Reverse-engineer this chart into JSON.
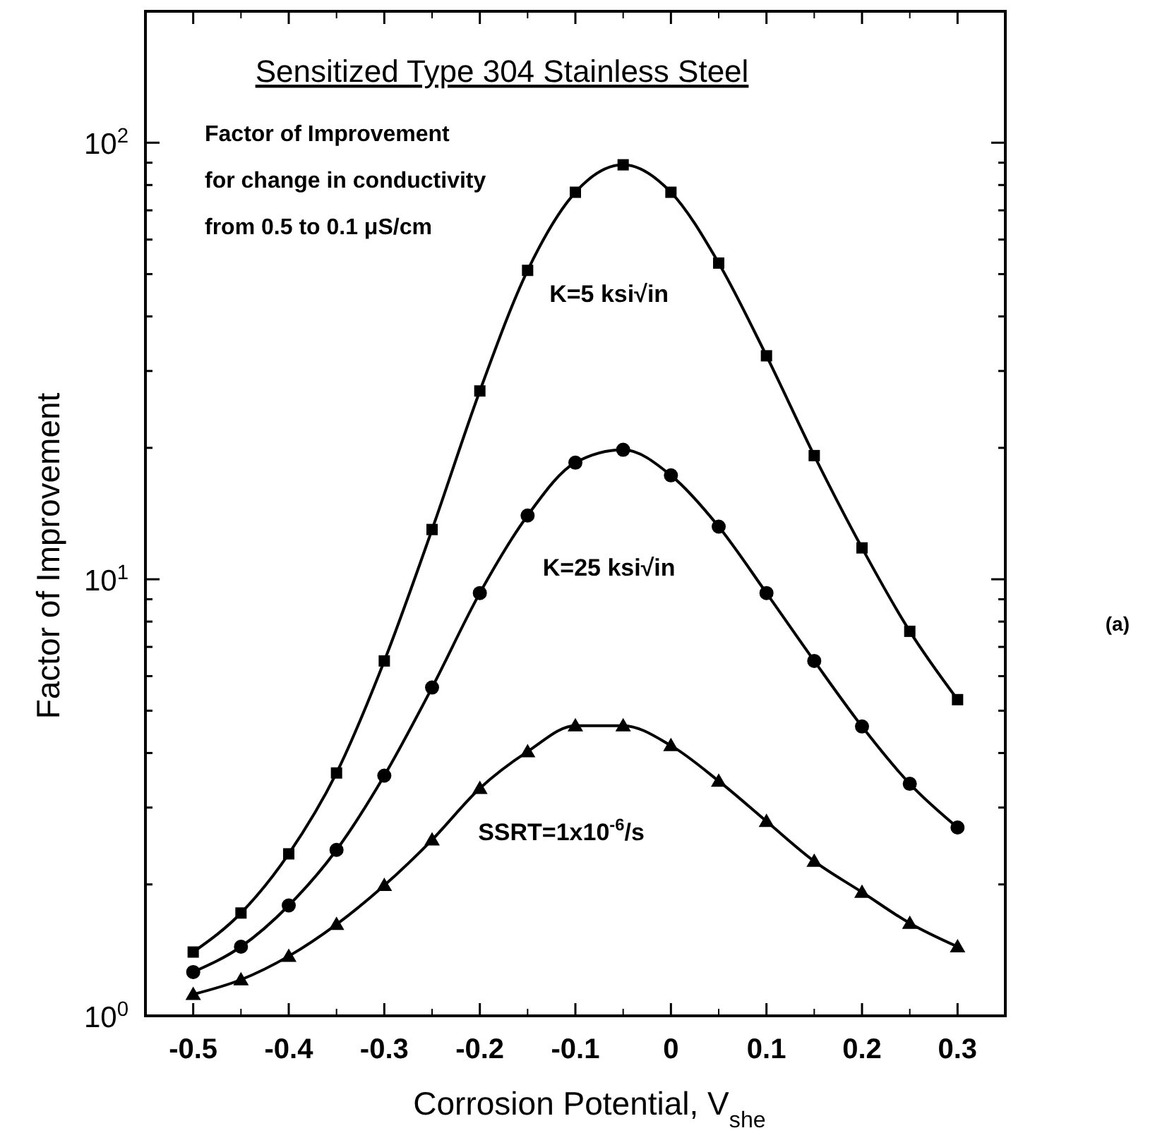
{
  "chart_data": {
    "type": "line",
    "title": "Sensitized Type 304 Stainless Steel",
    "xlabel": "Corrosion Potential, V$_{she}$",
    "ylabel": "Factor of Improvement",
    "log": "y",
    "grid": false,
    "annotations": [
      "Factor of Improvement",
      "for change in conductivity",
      "from 0.5 to 0.1 μS/cm",
      "(a)"
    ],
    "x": [
      -0.5,
      -0.45,
      -0.4,
      -0.35,
      -0.3,
      -0.25,
      -0.2,
      -0.15,
      -0.1,
      -0.05,
      0,
      0.05,
      0.1,
      0.15,
      0.2,
      0.25,
      0.3
    ],
    "xlim": [
      -0.55,
      0.35
    ],
    "xticks": [
      -0.5,
      -0.4,
      -0.3,
      -0.2,
      -0.1,
      0,
      0.1,
      0.2,
      0.3
    ],
    "ylim": [
      1,
      200
    ],
    "yticks": [
      {
        "value": 1,
        "label": "10$^{0}$"
      },
      {
        "value": 2,
        "label": null
      },
      {
        "value": 3,
        "label": null
      },
      {
        "value": 4,
        "label": null
      },
      {
        "value": 5,
        "label": null
      },
      {
        "value": 6,
        "label": null
      },
      {
        "value": 7,
        "label": null
      },
      {
        "value": 8,
        "label": null
      },
      {
        "value": 9,
        "label": null
      },
      {
        "value": 10,
        "label": "10$^{1}$"
      },
      {
        "value": 20,
        "label": null
      },
      {
        "value": 30,
        "label": null
      },
      {
        "value": 40,
        "label": null
      },
      {
        "value": 50,
        "label": null
      },
      {
        "value": 60,
        "label": null
      },
      {
        "value": 70,
        "label": null
      },
      {
        "value": 80,
        "label": null
      },
      {
        "value": 90,
        "label": null
      },
      {
        "value": 100,
        "label": "10$^{2}$"
      }
    ],
    "series": [
      {
        "name": "K=5 ksi√in",
        "color": "#000000",
        "marker": "square",
        "line_style": "solid",
        "values": [
          1.4,
          1.72,
          2.35,
          3.6,
          6.5,
          13,
          27,
          51,
          77,
          89,
          77,
          53,
          32.5,
          19.2,
          11.8,
          7.6,
          5.3
        ]
      },
      {
        "name": "K=25 ksi√in",
        "color": "#000000",
        "marker": "circle",
        "line_style": "solid",
        "values": [
          1.26,
          1.44,
          1.79,
          2.4,
          3.55,
          5.65,
          9.3,
          14,
          18.5,
          19.8,
          17.3,
          13.2,
          9.3,
          6.5,
          4.6,
          3.4,
          2.7
        ]
      },
      {
        "name": "SSRT=1x10$^{-6}$/s",
        "color": "#000000",
        "marker": "triangle",
        "line_style": "solid",
        "values": [
          1.12,
          1.21,
          1.37,
          1.62,
          1.99,
          2.53,
          3.32,
          4.03,
          4.62,
          4.62,
          4.16,
          3.45,
          2.79,
          2.26,
          1.92,
          1.63,
          1.44
        ]
      }
    ]
  }
}
